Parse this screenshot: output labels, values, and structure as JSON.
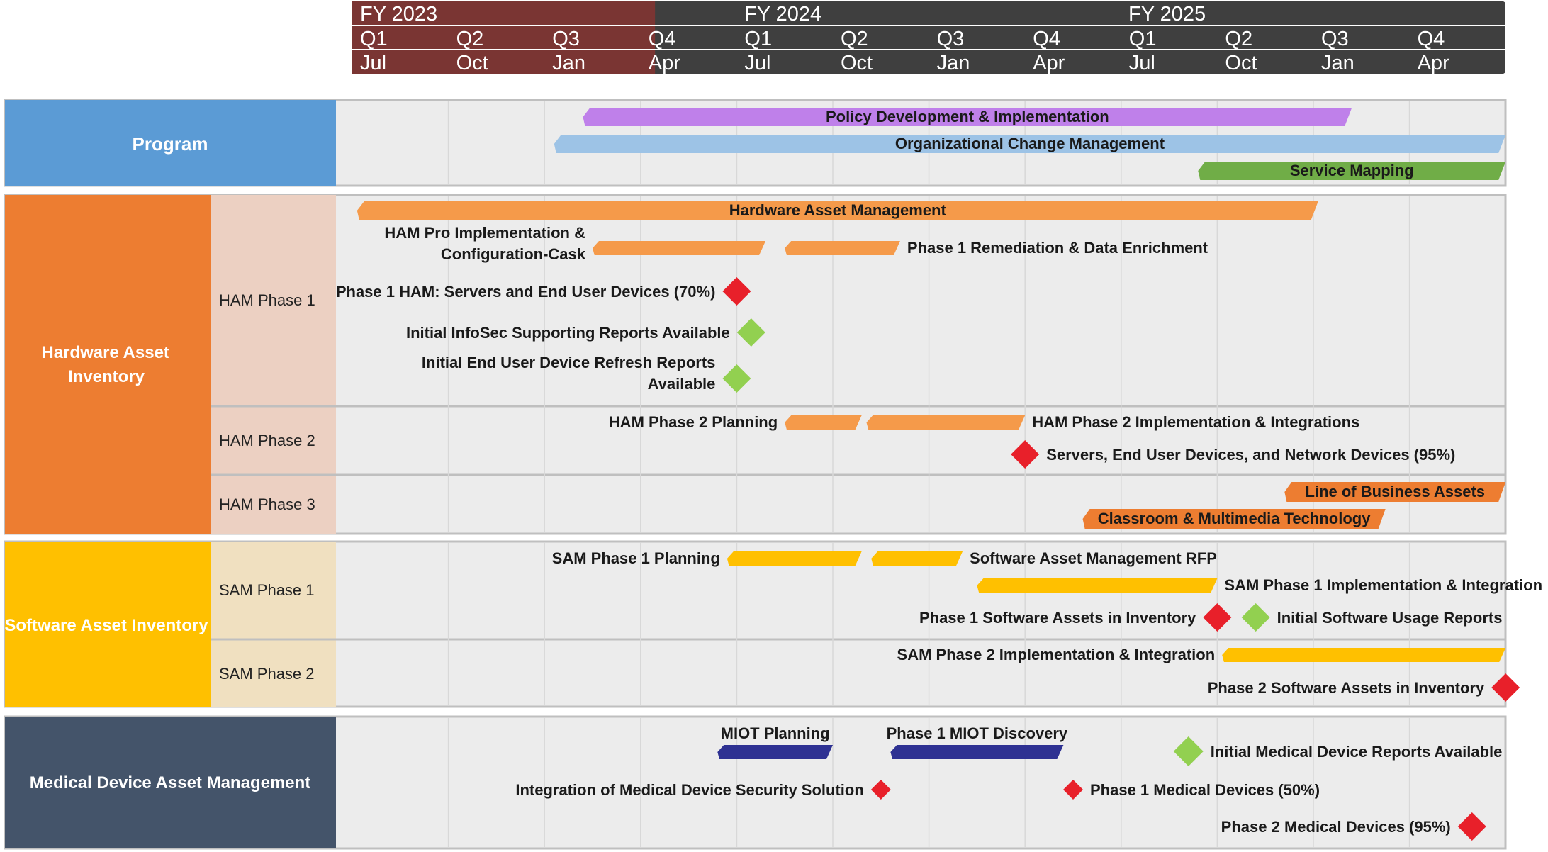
{
  "timeline": {
    "fiscal_years": [
      "FY 2023",
      "FY 2024",
      "FY 2025"
    ],
    "quarters": [
      "Q1",
      "Q2",
      "Q3",
      "Q4",
      "Q1",
      "Q2",
      "Q3",
      "Q4",
      "Q1",
      "Q2",
      "Q3",
      "Q4"
    ],
    "months": [
      "Jul",
      "Oct",
      "Jan",
      "Apr",
      "Jul",
      "Oct",
      "Jan",
      "Apr",
      "Jul",
      "Oct",
      "Jan",
      "Apr"
    ],
    "elapsed_quarters": 3.15
  },
  "colors": {
    "header_past": "#7a3533",
    "header_future": "#3f3f3f",
    "panel_bg": "#ececec",
    "program": "#5b9bd5",
    "hardware": "#ed7d31",
    "hardware_sub_bg": "#ecd0c2",
    "software": "#ffc000",
    "software_sub_bg": "#f0e0c0",
    "medical": "#44546a",
    "bar_purple": "#bf80ea",
    "bar_lightblue": "#9dc3e6",
    "bar_green": "#70ad47",
    "bar_orange": "#f59a4a",
    "bar_dark_orange": "#ed7d31",
    "bar_yellow": "#ffc000",
    "bar_navy": "#2e3192",
    "milestone_red": "#e8202a",
    "milestone_green": "#92d050"
  },
  "groups": {
    "program": {
      "label": "Program"
    },
    "hardware": {
      "label_line1": "Hardware Asset",
      "label_line2": "Inventory",
      "phases": [
        "HAM Phase 1",
        "HAM Phase 2",
        "HAM Phase 3"
      ]
    },
    "software": {
      "label": "Software Asset Inventory",
      "phases": [
        "SAM Phase 1",
        "SAM Phase 2"
      ]
    },
    "medical": {
      "label": "Medical Device Asset Management"
    }
  },
  "bars": [
    {
      "id": "policy",
      "label": "Policy Development & Implementation",
      "start": 2.4,
      "end": 10.4,
      "color": "#bf80ea",
      "label_pos": "inside"
    },
    {
      "id": "ocm",
      "label": "Organizational Change Management",
      "start": 2.1,
      "end": 12.0,
      "color": "#9dc3e6",
      "label_pos": "inside"
    },
    {
      "id": "service",
      "label": "Service Mapping",
      "start": 8.8,
      "end": 12.0,
      "color": "#70ad47",
      "label_pos": "inside"
    },
    {
      "id": "ham",
      "label": "Hardware Asset Management",
      "start": 0.05,
      "end": 10.05,
      "color": "#f59a4a",
      "label_pos": "inside"
    },
    {
      "id": "ham-pro",
      "label_line1": "HAM Pro Implementation &",
      "label_line2": "Configuration-Cask",
      "start": 2.5,
      "end": 4.3,
      "color": "#f59a4a",
      "label_pos": "left"
    },
    {
      "id": "p1-remed",
      "label": "Phase 1 Remediation & Data Enrichment",
      "start": 4.5,
      "end": 5.7,
      "color": "#f59a4a",
      "label_pos": "right"
    },
    {
      "id": "ham2-plan",
      "label": "HAM Phase 2 Planning",
      "start": 4.5,
      "end": 5.3,
      "color": "#f59a4a",
      "label_pos": "left"
    },
    {
      "id": "ham2-impl",
      "label": "HAM Phase 2 Implementation & Integrations",
      "start": 5.35,
      "end": 7.0,
      "color": "#f59a4a",
      "label_pos": "right"
    },
    {
      "id": "lob",
      "label": "Line of Business Assets",
      "start": 9.7,
      "end": 12.0,
      "color": "#ed7d31",
      "label_pos": "inside"
    },
    {
      "id": "cmt",
      "label": "Classroom & Multimedia Technology",
      "start": 7.6,
      "end": 10.75,
      "color": "#ed7d31",
      "label_pos": "inside"
    },
    {
      "id": "sam1-plan",
      "label": "SAM Phase 1 Planning",
      "start": 3.9,
      "end": 5.3,
      "color": "#ffc000",
      "label_pos": "left"
    },
    {
      "id": "sam-rfp",
      "label": "Software Asset Management RFP",
      "start": 5.4,
      "end": 6.35,
      "color": "#ffc000",
      "label_pos": "right"
    },
    {
      "id": "sam1-impl",
      "label": "SAM Phase 1 Implementation  & Integration",
      "start": 6.5,
      "end": 9.0,
      "color": "#ffc000",
      "label_pos": "right"
    },
    {
      "id": "sam2-impl",
      "label": "SAM Phase 2 Implementation & Integration",
      "start": 9.05,
      "end": 12.0,
      "color": "#ffc000",
      "label_pos": "left"
    },
    {
      "id": "miot-plan",
      "label": "MIOT Planning",
      "start": 3.8,
      "end": 5.0,
      "color": "#2e3192",
      "label_pos": "above"
    },
    {
      "id": "miot-disc",
      "label": "Phase 1 MIOT Discovery",
      "start": 5.6,
      "end": 7.4,
      "color": "#2e3192",
      "label_pos": "above"
    }
  ],
  "milestones": [
    {
      "id": "m1",
      "label": "Phase 1 HAM: Servers and End User Devices (70%)",
      "at": 4.0,
      "color": "#e8202a",
      "label_pos": "left"
    },
    {
      "id": "m2",
      "label": "Initial InfoSec Supporting Reports Available",
      "at": 4.15,
      "color": "#92d050",
      "label_pos": "left"
    },
    {
      "id": "m3",
      "label_line1": "Initial End User Device Refresh Reports",
      "label_line2": "Available",
      "at": 4.0,
      "color": "#92d050",
      "label_pos": "left"
    },
    {
      "id": "m4",
      "label": "Servers, End User Devices, and Network Devices (95%)",
      "at": 7.0,
      "color": "#e8202a",
      "label_pos": "right"
    },
    {
      "id": "m5",
      "label": "Phase 1 Software Assets in Inventory",
      "at": 9.0,
      "color": "#e8202a",
      "label_pos": "left"
    },
    {
      "id": "m6",
      "label": "Initial Software Usage Reports",
      "at": 9.4,
      "color": "#92d050",
      "label_pos": "right"
    },
    {
      "id": "m7",
      "label": "Phase 2 Software Assets in Inventory",
      "at": 12.0,
      "color": "#e8202a",
      "label_pos": "left"
    },
    {
      "id": "m8",
      "label": "Initial Medical Device Reports Available",
      "at": 8.7,
      "color": "#92d050",
      "label_pos": "right"
    },
    {
      "id": "m9",
      "label": "Integration of Medical Device Security Solution",
      "at": 5.5,
      "color": "#e8202a",
      "label_pos": "left"
    },
    {
      "id": "m10",
      "label": "Phase 1 Medical Devices (50%)",
      "at": 7.5,
      "color": "#e8202a",
      "label_pos": "right"
    },
    {
      "id": "m11",
      "label": "Phase 2 Medical Devices (95%)",
      "at": 11.65,
      "color": "#e8202a",
      "label_pos": "left"
    }
  ]
}
